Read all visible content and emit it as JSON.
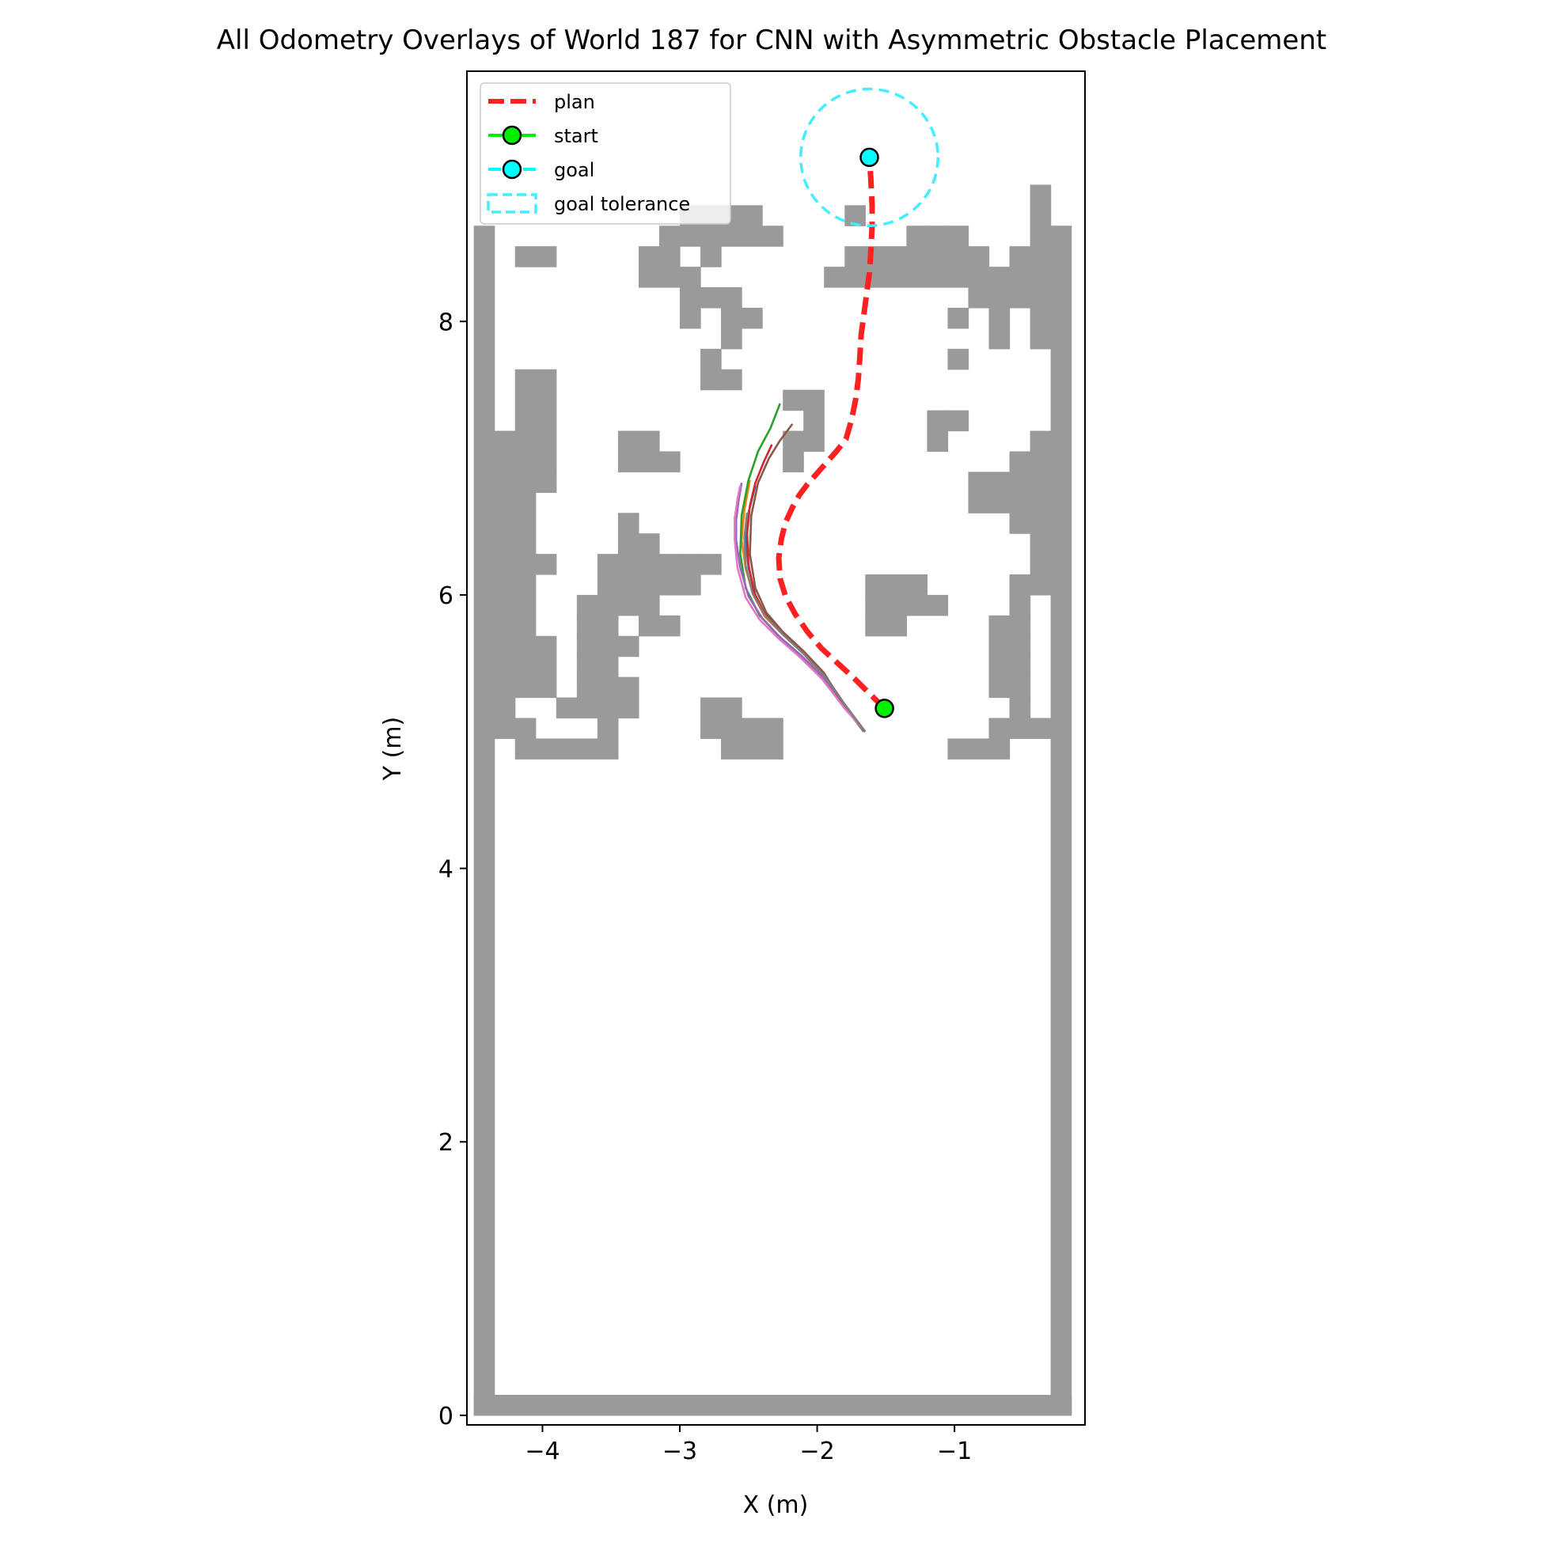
{
  "chart_data": {
    "type": "line",
    "title": "All Odometry Overlays of World 187 for CNN with Asymmetric Obstacle Placement",
    "xlabel": "X (m)",
    "ylabel": "Y (m)",
    "xlim": [
      -4.55,
      -0.05
    ],
    "ylim": [
      -0.07,
      9.83
    ],
    "xticks": [
      -4,
      -3,
      -2,
      -1
    ],
    "yticks": [
      0,
      2,
      4,
      6,
      8
    ],
    "xtick_labels": [
      "−4",
      "−3",
      "−2",
      "−1"
    ],
    "ytick_labels": [
      "0",
      "2",
      "4",
      "6",
      "8"
    ],
    "grid": false,
    "legend": {
      "placement": "top-left",
      "entries": [
        {
          "label": "plan",
          "color": "#ff2020",
          "style": "dashed"
        },
        {
          "label": "start",
          "color": "#00ee00",
          "style": "marker"
        },
        {
          "label": "goal",
          "color": "#00ffff",
          "style": "marker"
        },
        {
          "label": "goal tolerance",
          "color": "#44eeff",
          "style": "dashed-box"
        }
      ]
    },
    "map": {
      "color": "#9a9a9a",
      "cell_size": 0.15,
      "origin": [
        -4.5,
        0.0
      ],
      "width_cells": 29,
      "height_cells": 65,
      "walls": {
        "left": true,
        "right": true,
        "bottom": true
      },
      "wall_top_row": 57,
      "cells": [
        [
          2,
          56
        ],
        [
          3,
          56
        ],
        [
          10,
          58
        ],
        [
          11,
          58
        ],
        [
          12,
          58
        ],
        [
          13,
          58
        ],
        [
          13,
          57
        ],
        [
          14,
          57
        ],
        [
          18,
          58
        ],
        [
          21,
          57
        ],
        [
          22,
          57
        ],
        [
          23,
          57
        ],
        [
          23,
          56
        ],
        [
          23,
          55
        ],
        [
          24,
          56
        ],
        [
          24,
          55
        ],
        [
          24,
          54
        ],
        [
          25,
          54
        ],
        [
          25,
          53
        ],
        [
          25,
          52
        ],
        [
          9,
          57
        ],
        [
          10,
          57
        ],
        [
          11,
          57
        ],
        [
          12,
          57
        ],
        [
          11,
          56
        ],
        [
          8,
          56
        ],
        [
          9,
          56
        ],
        [
          9,
          55
        ],
        [
          8,
          55
        ],
        [
          18,
          56
        ],
        [
          19,
          56
        ],
        [
          20,
          56
        ],
        [
          21,
          56
        ],
        [
          22,
          56
        ],
        [
          17,
          55
        ],
        [
          18,
          55
        ],
        [
          19,
          55
        ],
        [
          20,
          55
        ],
        [
          21,
          55
        ],
        [
          22,
          55
        ],
        [
          23,
          53
        ],
        [
          23,
          51
        ],
        [
          10,
          55
        ],
        [
          10,
          54
        ],
        [
          10,
          53
        ],
        [
          11,
          54
        ],
        [
          12,
          54
        ],
        [
          12,
          53
        ],
        [
          13,
          53
        ],
        [
          12,
          52
        ],
        [
          11,
          51
        ],
        [
          11,
          50
        ],
        [
          12,
          50
        ],
        [
          2,
          50
        ],
        [
          3,
          50
        ],
        [
          2,
          49
        ],
        [
          3,
          49
        ],
        [
          2,
          48
        ],
        [
          3,
          48
        ],
        [
          1,
          47
        ],
        [
          2,
          47
        ],
        [
          3,
          47
        ],
        [
          1,
          46
        ],
        [
          2,
          46
        ],
        [
          3,
          46
        ],
        [
          1,
          45
        ],
        [
          2,
          45
        ],
        [
          3,
          45
        ],
        [
          1,
          44
        ],
        [
          2,
          44
        ],
        [
          1,
          43
        ],
        [
          2,
          43
        ],
        [
          1,
          42
        ],
        [
          2,
          42
        ],
        [
          1,
          41
        ],
        [
          2,
          41
        ],
        [
          3,
          41
        ],
        [
          1,
          40
        ],
        [
          2,
          40
        ],
        [
          1,
          39
        ],
        [
          2,
          39
        ],
        [
          1,
          38
        ],
        [
          2,
          38
        ],
        [
          1,
          37
        ],
        [
          2,
          37
        ],
        [
          3,
          37
        ],
        [
          1,
          36
        ],
        [
          2,
          36
        ],
        [
          1,
          35
        ],
        [
          2,
          35
        ],
        [
          1,
          34
        ],
        [
          1,
          33
        ],
        [
          2,
          33
        ],
        [
          2,
          32
        ],
        [
          3,
          32
        ],
        [
          4,
          32
        ],
        [
          5,
          32
        ],
        [
          6,
          32
        ],
        [
          7,
          47
        ],
        [
          8,
          47
        ],
        [
          7,
          46
        ],
        [
          8,
          46
        ],
        [
          9,
          46
        ],
        [
          15,
          49
        ],
        [
          16,
          49
        ],
        [
          16,
          48
        ],
        [
          16,
          47
        ],
        [
          15,
          47
        ],
        [
          15,
          46
        ],
        [
          7,
          43
        ],
        [
          7,
          42
        ],
        [
          8,
          42
        ],
        [
          6,
          41
        ],
        [
          7,
          41
        ],
        [
          8,
          41
        ],
        [
          9,
          41
        ],
        [
          10,
          41
        ],
        [
          11,
          41
        ],
        [
          6,
          40
        ],
        [
          7,
          40
        ],
        [
          8,
          40
        ],
        [
          9,
          40
        ],
        [
          10,
          40
        ],
        [
          7,
          39
        ],
        [
          8,
          39
        ],
        [
          8,
          38
        ],
        [
          9,
          38
        ],
        [
          5,
          39
        ],
        [
          6,
          39
        ],
        [
          5,
          38
        ],
        [
          6,
          38
        ],
        [
          5,
          37
        ],
        [
          6,
          37
        ],
        [
          7,
          37
        ],
        [
          5,
          36
        ],
        [
          6,
          36
        ],
        [
          3,
          36
        ],
        [
          3,
          35
        ],
        [
          5,
          35
        ],
        [
          6,
          35
        ],
        [
          7,
          35
        ],
        [
          4,
          34
        ],
        [
          5,
          34
        ],
        [
          6,
          34
        ],
        [
          7,
          34
        ],
        [
          6,
          33
        ],
        [
          11,
          34
        ],
        [
          12,
          34
        ],
        [
          11,
          33
        ],
        [
          12,
          33
        ],
        [
          13,
          33
        ],
        [
          14,
          33
        ],
        [
          12,
          32
        ],
        [
          13,
          32
        ],
        [
          14,
          32
        ],
        [
          22,
          48
        ],
        [
          23,
          48
        ],
        [
          22,
          47
        ],
        [
          24,
          45
        ],
        [
          25,
          45
        ],
        [
          24,
          44
        ],
        [
          19,
          40
        ],
        [
          20,
          40
        ],
        [
          21,
          40
        ],
        [
          19,
          39
        ],
        [
          20,
          39
        ],
        [
          21,
          39
        ],
        [
          22,
          39
        ],
        [
          19,
          38
        ],
        [
          20,
          38
        ],
        [
          26,
          40
        ],
        [
          27,
          40
        ],
        [
          26,
          39
        ],
        [
          26,
          38
        ],
        [
          25,
          38
        ],
        [
          26,
          37
        ],
        [
          25,
          37
        ],
        [
          26,
          36
        ],
        [
          25,
          36
        ],
        [
          26,
          35
        ],
        [
          25,
          35
        ],
        [
          27,
          47
        ],
        [
          26,
          46
        ],
        [
          27,
          46
        ],
        [
          26,
          45
        ],
        [
          27,
          45
        ],
        [
          25,
          44
        ],
        [
          26,
          44
        ],
        [
          27,
          44
        ],
        [
          26,
          43
        ],
        [
          27,
          43
        ],
        [
          27,
          42
        ],
        [
          27,
          41
        ],
        [
          25,
          33
        ],
        [
          26,
          33
        ],
        [
          25,
          32
        ],
        [
          24,
          32
        ],
        [
          23,
          32
        ],
        [
          27,
          33
        ],
        [
          26,
          34
        ],
        [
          25,
          55
        ],
        [
          26,
          55
        ],
        [
          27,
          55
        ],
        [
          26,
          54
        ],
        [
          27,
          54
        ],
        [
          27,
          53
        ],
        [
          27,
          52
        ],
        [
          26,
          56
        ],
        [
          27,
          56
        ],
        [
          27,
          57
        ],
        [
          27,
          58
        ],
        [
          27,
          59
        ]
      ]
    },
    "plan": {
      "name": "plan",
      "color": "#ff2020",
      "x": [
        -1.51,
        -1.62,
        -1.73,
        -1.85,
        -1.97,
        -2.07,
        -2.16,
        -2.23,
        -2.27,
        -2.28,
        -2.26,
        -2.23,
        -2.18,
        -2.13,
        -2.07,
        -2.0,
        -1.93,
        -1.86,
        -1.79,
        -1.75,
        -1.72,
        -1.7,
        -1.69,
        -1.68,
        -1.66,
        -1.64,
        -1.62,
        -1.61,
        -1.6,
        -1.6,
        -1.61,
        -1.62
      ],
      "y": [
        5.17,
        5.28,
        5.39,
        5.5,
        5.61,
        5.73,
        5.86,
        5.99,
        6.12,
        6.27,
        6.41,
        6.53,
        6.64,
        6.73,
        6.81,
        6.89,
        6.97,
        7.05,
        7.14,
        7.28,
        7.43,
        7.58,
        7.73,
        7.9,
        8.05,
        8.2,
        8.35,
        8.5,
        8.7,
        8.85,
        9.05,
        9.2
      ]
    },
    "start": {
      "name": "start",
      "x": -1.51,
      "y": 5.17,
      "color": "#00ee00"
    },
    "goal": {
      "name": "goal",
      "x": -1.62,
      "y": 9.2,
      "color": "#00ffff"
    },
    "goal_tolerance": {
      "name": "goal tolerance",
      "cx": -1.62,
      "cy": 9.2,
      "r": 0.5,
      "color": "#44eeff"
    },
    "odometry": [
      {
        "color": "#1f77b4",
        "x": [
          -1.65,
          -1.8,
          -1.95,
          -2.1,
          -2.25,
          -2.38,
          -2.45,
          -2.5,
          -2.52,
          -2.5,
          -2.45
        ],
        "y": [
          5.0,
          5.2,
          5.42,
          5.58,
          5.72,
          5.85,
          6.0,
          6.2,
          6.4,
          6.6,
          6.8
        ]
      },
      {
        "color": "#ff7f0e",
        "x": [
          -1.65,
          -1.8,
          -1.95,
          -2.1,
          -2.25,
          -2.38,
          -2.46,
          -2.52,
          -2.55,
          -2.53,
          -2.49
        ],
        "y": [
          5.0,
          5.19,
          5.4,
          5.57,
          5.71,
          5.84,
          5.99,
          6.19,
          6.4,
          6.62,
          6.84
        ]
      },
      {
        "color": "#2ca02c",
        "x": [
          -1.66,
          -1.8,
          -1.96,
          -2.12,
          -2.28,
          -2.42,
          -2.52,
          -2.56,
          -2.55,
          -2.5,
          -2.43,
          -2.34,
          -2.27
        ],
        "y": [
          5.0,
          5.18,
          5.4,
          5.56,
          5.7,
          5.85,
          6.05,
          6.3,
          6.58,
          6.84,
          7.05,
          7.22,
          7.4
        ]
      },
      {
        "color": "#d62728",
        "x": [
          -1.66,
          -1.8,
          -1.95,
          -2.1,
          -2.25,
          -2.38,
          -2.46,
          -2.5,
          -2.51,
          -2.49,
          -2.45,
          -2.39,
          -2.33
        ],
        "y": [
          5.0,
          5.2,
          5.42,
          5.58,
          5.72,
          5.86,
          6.02,
          6.22,
          6.45,
          6.65,
          6.82,
          6.97,
          7.1
        ]
      },
      {
        "color": "#9467bd",
        "x": [
          -1.65,
          -1.8,
          -1.95,
          -2.11,
          -2.27,
          -2.4,
          -2.5,
          -2.56,
          -2.59,
          -2.59,
          -2.57,
          -2.55
        ],
        "y": [
          5.0,
          5.18,
          5.39,
          5.55,
          5.69,
          5.83,
          5.99,
          6.2,
          6.4,
          6.55,
          6.7,
          6.82
        ]
      },
      {
        "color": "#8c564b",
        "x": [
          -1.66,
          -1.81,
          -1.95,
          -2.1,
          -2.25,
          -2.37,
          -2.45,
          -2.49,
          -2.48,
          -2.43,
          -2.35,
          -2.27,
          -2.18
        ],
        "y": [
          5.0,
          5.2,
          5.43,
          5.59,
          5.73,
          5.87,
          6.05,
          6.3,
          6.58,
          6.82,
          7.0,
          7.13,
          7.25
        ]
      },
      {
        "color": "#e377c2",
        "x": [
          -1.65,
          -1.8,
          -1.96,
          -2.12,
          -2.28,
          -2.42,
          -2.52,
          -2.58,
          -2.6,
          -2.6,
          -2.58,
          -2.56
        ],
        "y": [
          5.0,
          5.17,
          5.38,
          5.54,
          5.68,
          5.82,
          5.98,
          6.2,
          6.4,
          6.56,
          6.7,
          6.8
        ]
      },
      {
        "color": "#7f7f7f",
        "x": [
          -1.65,
          -1.8,
          -1.95,
          -2.1,
          -2.25,
          -2.38,
          -2.47,
          -2.52,
          -2.53,
          -2.51
        ],
        "y": [
          5.0,
          5.2,
          5.41,
          5.57,
          5.71,
          5.85,
          6.01,
          6.21,
          6.42,
          6.6
        ]
      }
    ]
  }
}
